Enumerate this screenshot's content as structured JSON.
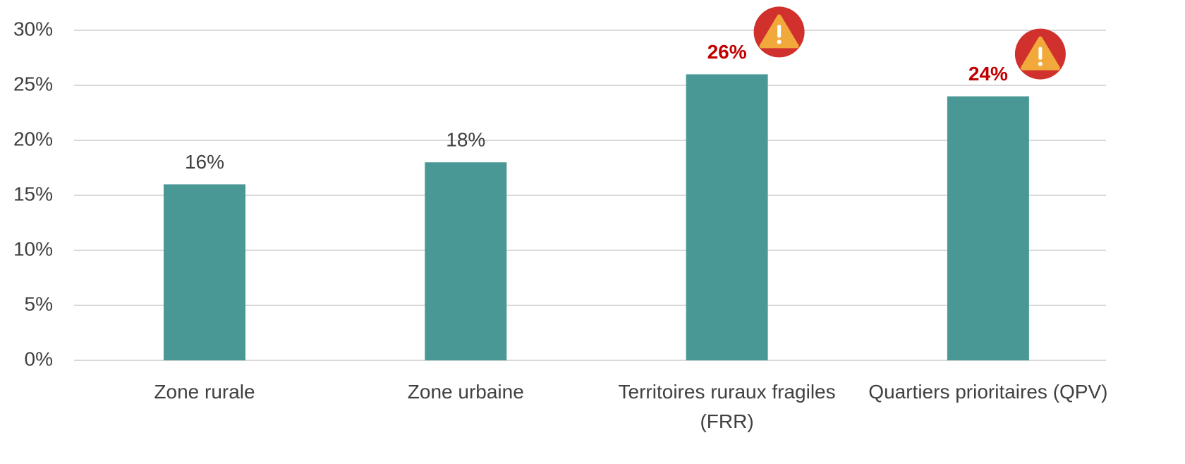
{
  "chart_data": {
    "type": "bar",
    "categories": [
      "Zone rurale",
      "Zone urbaine",
      "Territoires ruraux fragiles (FRR)",
      "Quartiers prioritaires (QPV)"
    ],
    "values": [
      16,
      18,
      26,
      24
    ],
    "value_labels": [
      "16%",
      "18%",
      "26%",
      "24%"
    ],
    "value_label_colors": [
      "#404040",
      "#404040",
      "#c00000",
      "#c00000"
    ],
    "warnings": [
      false,
      false,
      true,
      true
    ],
    "color": "#4a9896",
    "ylim": [
      0,
      30
    ],
    "yticks": [
      {
        "value": 0,
        "label": "0%"
      },
      {
        "value": 5,
        "label": "5%"
      },
      {
        "value": 10,
        "label": "10%"
      },
      {
        "value": 15,
        "label": "15%"
      },
      {
        "value": 20,
        "label": "20%"
      },
      {
        "value": 25,
        "label": "25%"
      },
      {
        "value": 30,
        "label": "30%"
      }
    ],
    "grid": true
  }
}
